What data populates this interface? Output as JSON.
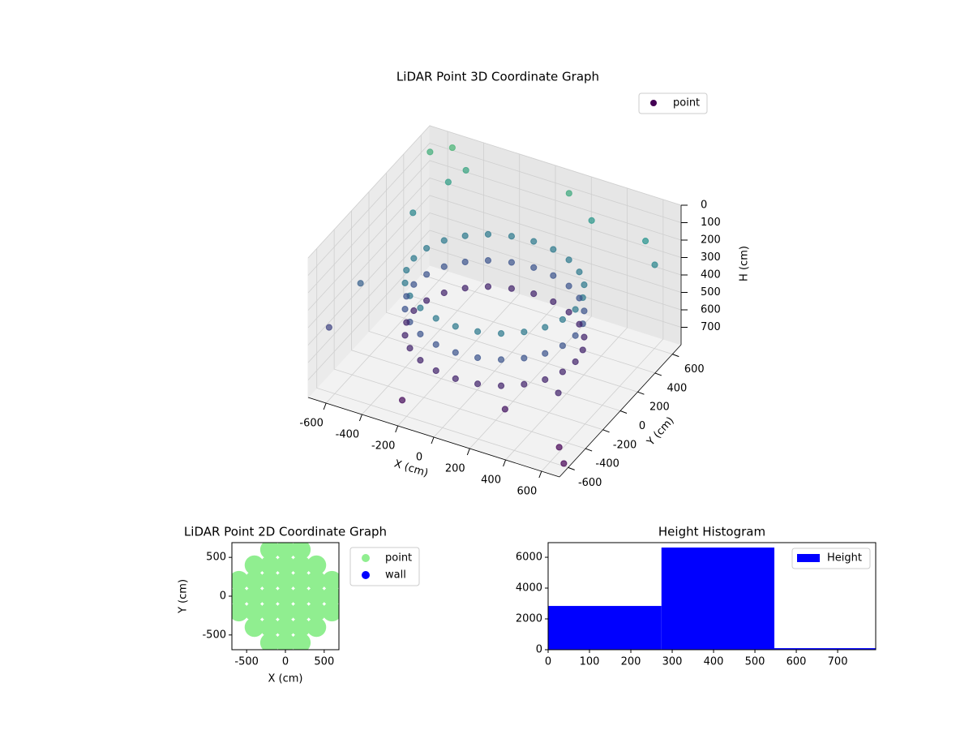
{
  "chart_data": [
    {
      "type": "scatter3d",
      "title": "LiDAR Point 3D Coordinate Graph",
      "xlabel": "X (cm)",
      "ylabel": "Y (cm)",
      "zlabel": "H (cm)",
      "xlim": [
        -700,
        700
      ],
      "ylim": [
        -700,
        700
      ],
      "zlim": [
        0,
        800
      ],
      "z_inverted": true,
      "xticks": [
        -600,
        -400,
        -200,
        0,
        200,
        400,
        600
      ],
      "yticks": [
        -600,
        -400,
        -200,
        0,
        200,
        400,
        600
      ],
      "zticks": [
        0,
        100,
        200,
        300,
        400,
        500,
        600,
        700
      ],
      "colormap": "viridis",
      "color_range": [
        700,
        -300
      ],
      "alpha": 0.7,
      "grid": true,
      "legend": "upper right",
      "series": [
        {
          "name": "point",
          "color": "#440154",
          "x": [
            450,
            435,
            390,
            318,
            225,
            116,
            0,
            -116,
            -225,
            -318,
            -390,
            -435,
            -450,
            -435,
            -390,
            -318,
            -225,
            -116,
            0,
            116,
            225,
            318,
            390,
            435,
            450,
            435,
            390,
            318,
            225,
            116,
            0,
            -116,
            -225,
            -318,
            -390,
            -435,
            -450,
            -435,
            -390,
            -318,
            -225,
            -116,
            0,
            116,
            225,
            318,
            390,
            435,
            450,
            435,
            390,
            318,
            225,
            116,
            0,
            -116,
            -225,
            -318,
            -390,
            -435,
            -450,
            -435,
            -390,
            -318,
            -225,
            -116,
            0,
            116,
            225,
            318,
            390,
            435,
            -650,
            -550,
            -450,
            -600,
            -650,
            -680,
            -500,
            100,
            250,
            550,
            650,
            650,
            700,
            300,
            -200,
            500
          ],
          "y": [
            0,
            116,
            225,
            318,
            390,
            435,
            450,
            435,
            390,
            318,
            225,
            116,
            0,
            -116,
            -225,
            -318,
            -390,
            -435,
            -450,
            -435,
            -390,
            -318,
            -225,
            -116,
            0,
            116,
            225,
            318,
            390,
            435,
            450,
            435,
            390,
            318,
            225,
            116,
            0,
            -116,
            -225,
            -318,
            -390,
            -435,
            -450,
            -435,
            -390,
            -318,
            -225,
            -116,
            0,
            116,
            225,
            318,
            390,
            435,
            450,
            435,
            390,
            318,
            225,
            116,
            0,
            -116,
            -225,
            -318,
            -390,
            -435,
            -450,
            -435,
            -390,
            -318,
            -225,
            -116,
            600,
            650,
            600,
            300,
            -200,
            -500,
            500,
            650,
            600,
            600,
            500,
            -600,
            -650,
            -500,
            -650,
            -300
          ],
          "z": [
            300,
            300,
            300,
            300,
            300,
            300,
            300,
            300,
            300,
            300,
            300,
            300,
            300,
            300,
            300,
            300,
            300,
            300,
            300,
            300,
            300,
            300,
            300,
            300,
            450,
            450,
            450,
            450,
            450,
            450,
            450,
            450,
            450,
            450,
            450,
            450,
            450,
            450,
            450,
            450,
            450,
            450,
            450,
            450,
            450,
            450,
            450,
            450,
            600,
            600,
            600,
            600,
            600,
            600,
            600,
            600,
            600,
            600,
            600,
            600,
            600,
            600,
            600,
            600,
            600,
            600,
            600,
            600,
            600,
            600,
            600,
            600,
            80,
            50,
            120,
            250,
            400,
            500,
            150,
            100,
            180,
            200,
            250,
            700,
            750,
            650,
            680,
            600
          ]
        }
      ]
    },
    {
      "type": "scatter",
      "title": "LiDAR Point 2D Coordinate Graph",
      "xlabel": "X (cm)",
      "ylabel": "Y (cm)",
      "xlim": [
        -690,
        690
      ],
      "ylim": [
        -690,
        690
      ],
      "xticks": [
        -500,
        0,
        500
      ],
      "yticks": [
        -500,
        0,
        500
      ],
      "legend": "outside upper right",
      "series": [
        {
          "name": "point",
          "color": "#90ee90",
          "x": [
            -200,
            0,
            200,
            -400,
            -200,
            0,
            200,
            400,
            -600,
            -400,
            -200,
            0,
            200,
            400,
            600,
            -600,
            -400,
            -200,
            0,
            200,
            400,
            600,
            -600,
            -400,
            -200,
            0,
            200,
            400,
            600,
            -400,
            -200,
            0,
            200,
            400,
            -200,
            0,
            200
          ],
          "y": [
            600,
            600,
            600,
            400,
            400,
            400,
            400,
            400,
            200,
            200,
            200,
            200,
            200,
            200,
            200,
            0,
            0,
            0,
            0,
            0,
            0,
            0,
            -200,
            -200,
            -200,
            -200,
            -200,
            -200,
            -200,
            -400,
            -400,
            -400,
            -400,
            -400,
            -600,
            -600,
            -600
          ]
        },
        {
          "name": "wall",
          "color": "#0000ff",
          "x": [],
          "y": []
        }
      ]
    },
    {
      "type": "histogram",
      "title": "Height Histogram",
      "name": "Height",
      "color": "#0000ff",
      "bins": [
        0,
        274,
        547,
        821
      ],
      "values": [
        2840,
        6630,
        100
      ],
      "xlim": [
        0,
        792
      ],
      "ylim": [
        0,
        6950
      ],
      "xticks": [
        0,
        100,
        200,
        300,
        400,
        500,
        600,
        700
      ],
      "yticks": [
        0,
        2000,
        4000,
        6000
      ],
      "legend": "upper right"
    }
  ]
}
